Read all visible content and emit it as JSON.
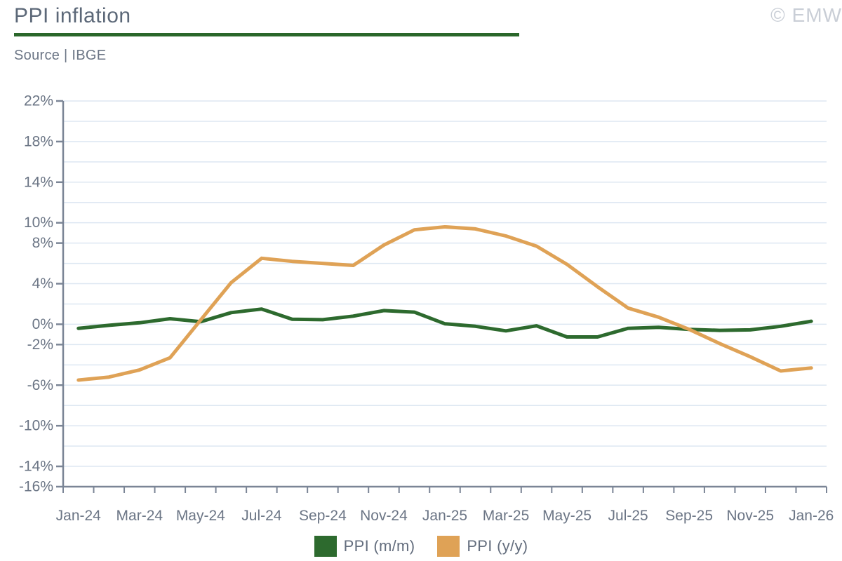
{
  "header": {
    "title": "PPI inflation",
    "source": "Source | IBGE",
    "watermark": "© EMW"
  },
  "chart_data": {
    "type": "line",
    "title": "PPI inflation",
    "source": "IBGE",
    "x": [
      "Jan-24",
      "Feb-24",
      "Mar-24",
      "Apr-24",
      "May-24",
      "Jun-24",
      "Jul-24",
      "Aug-24",
      "Sep-24",
      "Oct-24",
      "Nov-24",
      "Dec-24",
      "Jan-25",
      "Feb-25",
      "Mar-25",
      "Apr-25",
      "May-25",
      "Jun-25",
      "Jul-25",
      "Aug-25",
      "Sep-25",
      "Oct-25",
      "Nov-25",
      "Dec-25",
      "Jan-26"
    ],
    "series": [
      {
        "name": "PPI (m/m)",
        "color": "#2d6a2e",
        "values": [
          -0.4,
          -0.1,
          0.15,
          0.55,
          0.25,
          1.15,
          1.5,
          0.5,
          0.45,
          0.8,
          1.35,
          1.2,
          0.05,
          -0.2,
          -0.65,
          -0.15,
          -1.25,
          -1.25,
          -0.4,
          -0.3,
          -0.5,
          -0.6,
          -0.55,
          -0.2,
          0.3
        ]
      },
      {
        "name": "PPI (y/y)",
        "color": "#dfa256",
        "values": [
          -5.5,
          -5.2,
          -4.5,
          -3.3,
          0.4,
          4.1,
          6.5,
          6.2,
          6.0,
          5.8,
          7.8,
          9.3,
          9.6,
          9.4,
          8.7,
          7.7,
          5.9,
          3.7,
          1.6,
          0.7,
          -0.5,
          -1.9,
          -3.2,
          -4.6,
          -4.3
        ]
      }
    ],
    "ylim": [
      -16,
      22
    ],
    "y_gridline_step": 2,
    "y_tick_labels": [
      22,
      18,
      14,
      10,
      8,
      4,
      0,
      -2,
      -6,
      -10,
      -14,
      -16
    ],
    "y_tick_suffix": "%",
    "x_tick_label_every": 2,
    "x_tick_labels": [
      "Jan-24",
      "Mar-24",
      "May-24",
      "Jul-24",
      "Sep-24",
      "Nov-24",
      "Jan-25",
      "Mar-25",
      "May-25",
      "Jul-25",
      "Sep-25",
      "Nov-25",
      "Jan-26"
    ],
    "grid": true,
    "legend_position": "bottom"
  },
  "legend": {
    "items": [
      {
        "label": "PPI (m/m)",
        "color": "#2d6a2e"
      },
      {
        "label": "PPI (y/y)",
        "color": "#dfa256"
      }
    ]
  },
  "colors": {
    "accent_green": "#2d6a2e",
    "accent_orange": "#dfa256",
    "title_rule_green": "#2b672b",
    "title_text": "#5c6878",
    "axis_text": "#6b7585",
    "axis_line": "#7b8596",
    "gridline": "#dde7f2",
    "watermark": "#c9ced6",
    "background": "#ffffff"
  }
}
